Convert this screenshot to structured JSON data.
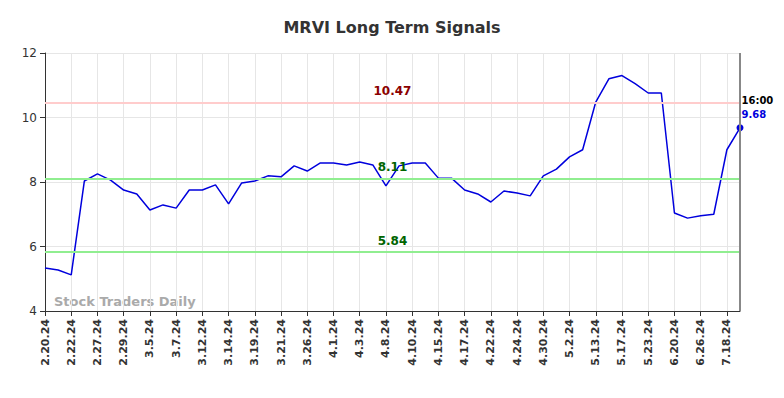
{
  "chart_data": {
    "type": "line",
    "title": "MRVI Long Term Signals",
    "watermark": "Stock Traders Daily",
    "categories": [
      "2.20.24",
      null,
      "2.22.24",
      null,
      "2.27.24",
      null,
      "2.29.24",
      null,
      "3.5.24",
      null,
      "3.7.24",
      null,
      "3.12.24",
      null,
      "3.14.24",
      null,
      "3.19.24",
      null,
      "3.21.24",
      null,
      "3.26.24",
      null,
      "4.1.24",
      null,
      "4.3.24",
      null,
      "4.8.24",
      null,
      "4.10.24",
      null,
      "4.15.24",
      null,
      "4.17.24",
      null,
      "4.22.24",
      null,
      "4.24.24",
      null,
      "4.30.24",
      null,
      "5.2.24",
      null,
      "5.13.24",
      null,
      "5.17.24",
      null,
      "5.23.24",
      null,
      "6.20.24",
      null,
      "6.26.24",
      null,
      "7.18.24",
      null
    ],
    "values": [
      5.33,
      5.27,
      5.12,
      8.03,
      8.25,
      8.06,
      7.75,
      7.63,
      7.13,
      7.29,
      7.19,
      7.75,
      7.75,
      7.91,
      7.32,
      7.97,
      8.03,
      8.19,
      8.16,
      8.5,
      8.34,
      8.59,
      8.59,
      8.53,
      8.62,
      8.53,
      7.88,
      8.5,
      8.59,
      8.59,
      8.12,
      8.12,
      7.75,
      7.63,
      7.38,
      7.72,
      7.66,
      7.57,
      8.19,
      8.4,
      8.78,
      9.0,
      10.48,
      11.2,
      11.3,
      11.05,
      10.76,
      10.76,
      7.04,
      6.88,
      6.95,
      7.0,
      9.0,
      9.68
    ],
    "color": "#0000dd",
    "end_label": "16:00",
    "reference_lines": [
      {
        "value": 10.47,
        "color": "#ffcccc",
        "label_color": "#8b0000"
      },
      {
        "value": 8.11,
        "color": "#90ee90",
        "label_color": "#006400"
      },
      {
        "value": 5.84,
        "color": "#90ee90",
        "label_color": "#006400"
      }
    ],
    "ylim": [
      4,
      12
    ],
    "yticks": [
      4,
      6,
      8,
      10,
      12
    ],
    "grid": true
  }
}
